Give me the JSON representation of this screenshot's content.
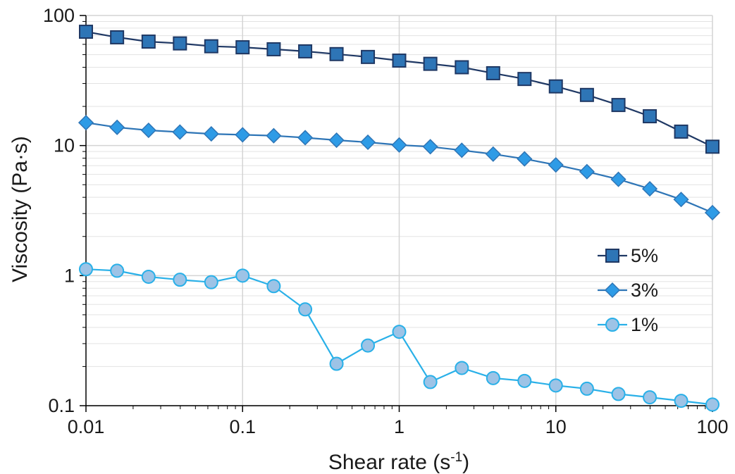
{
  "chart_data": {
    "type": "scatter",
    "title": "",
    "xlabel": "Shear rate (s",
    "xlabel_sup": "-1",
    "xlabel_suffix": ")",
    "ylabel": "Viscosity (Pa·s)",
    "xscale": "log",
    "yscale": "log",
    "xlim": [
      0.01,
      100
    ],
    "ylim": [
      0.1,
      100
    ],
    "x_tick_labels": [
      "0.01",
      "0.1",
      "1",
      "10",
      "100"
    ],
    "y_tick_labels": [
      "0.1",
      "1",
      "10",
      "100"
    ],
    "grid": true,
    "legend_position": "right",
    "x": [
      0.01,
      0.0158,
      0.0251,
      0.0398,
      0.0631,
      0.1,
      0.158,
      0.251,
      0.398,
      0.631,
      1,
      1.58,
      2.51,
      3.98,
      6.31,
      10,
      15.8,
      25.1,
      39.8,
      63.1,
      100
    ],
    "series": [
      {
        "name": "5%",
        "marker": "square",
        "line_color": "#1F3864",
        "marker_color": "#2E75B6",
        "values": [
          75,
          68,
          63,
          61,
          58,
          57,
          55,
          53,
          50.5,
          48,
          45,
          42.5,
          40,
          36,
          32.5,
          28.5,
          24.5,
          20.5,
          16.8,
          12.8,
          9.8
        ]
      },
      {
        "name": "3%",
        "marker": "diamond",
        "line_color": "#2E75B6",
        "marker_color": "#2E9BE6",
        "values": [
          15,
          13.8,
          13.1,
          12.7,
          12.3,
          12.1,
          11.9,
          11.5,
          11,
          10.6,
          10.1,
          9.8,
          9.2,
          8.6,
          7.9,
          7.1,
          6.3,
          5.5,
          4.65,
          3.85,
          3.05
        ]
      },
      {
        "name": "1%",
        "marker": "circle",
        "line_color": "#29B0E8",
        "marker_color": "#9DC3E6",
        "values": [
          1.12,
          1.09,
          0.98,
          0.93,
          0.89,
          1.0,
          0.83,
          0.55,
          0.21,
          0.29,
          0.37,
          0.152,
          0.195,
          0.163,
          0.155,
          0.143,
          0.135,
          0.123,
          0.116,
          0.109,
          0.102
        ]
      }
    ]
  }
}
